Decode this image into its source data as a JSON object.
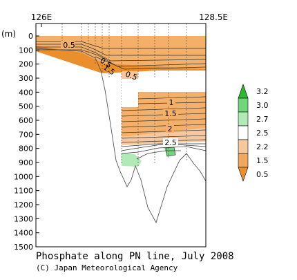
{
  "chart_data": {
    "type": "heatmap",
    "title": "Phosphate along PN line, July 2008",
    "credit": "(C) Japan Meteorological Agency",
    "x_axis": {
      "ticks": [
        "126E",
        "128.5E"
      ],
      "range_deg": [
        126,
        128.5
      ]
    },
    "y_axis": {
      "unit": "(m)",
      "range": [
        0,
        1500
      ],
      "inverted": true,
      "ticks": [
        "0",
        "100",
        "200",
        "300",
        "400",
        "500",
        "600",
        "700",
        "800",
        "900",
        "1000",
        "1100",
        "1200",
        "1300",
        "1400",
        "1500"
      ]
    },
    "colorbar": {
      "levels": [
        "3.2",
        "3.0",
        "2.7",
        "2.5",
        "2.2",
        "1.5",
        "0.5"
      ],
      "colors": [
        "#2eb82e",
        "#6fd67a",
        "#b2eab7",
        "#ffffff",
        "#f7c79e",
        "#f2a85e",
        "#ea8f2c"
      ]
    },
    "contour_labels": [
      "0.5",
      "0.5",
      "1.5",
      "0.5",
      "1",
      "1.5",
      "2",
      "2.5"
    ],
    "bottom_depth_points": [
      {
        "lon_deg": 0.0,
        "depth": 70
      },
      {
        "lon_deg": 0.55,
        "depth": 75
      },
      {
        "lon_deg": 0.85,
        "depth": 120
      },
      {
        "lon_deg": 1.0,
        "depth": 230
      },
      {
        "lon_deg": 1.12,
        "depth": 700
      },
      {
        "lon_deg": 1.2,
        "depth": 970
      },
      {
        "lon_deg": 1.3,
        "depth": 1080
      },
      {
        "lon_deg": 1.45,
        "depth": 1000
      },
      {
        "lon_deg": 1.7,
        "depth": 1200
      },
      {
        "lon_deg": 1.85,
        "depth": 1310
      },
      {
        "lon_deg": 2.2,
        "depth": 830
      },
      {
        "lon_deg": 2.5,
        "depth": 1000
      }
    ]
  }
}
